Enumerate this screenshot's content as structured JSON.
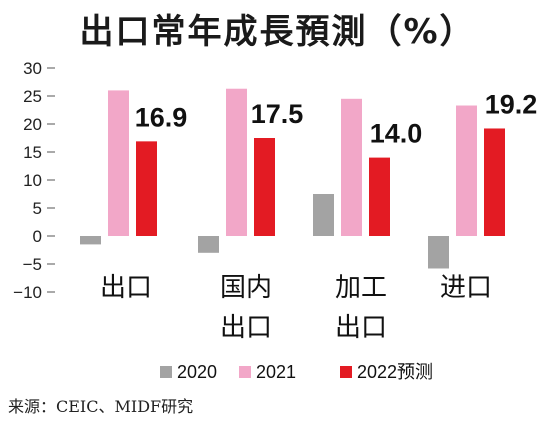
{
  "title": "出口常年成長預測（%）",
  "source": "来源：CEIC、MIDF研究",
  "chart_data": {
    "type": "bar",
    "categories": [
      [
        "出口"
      ],
      [
        "国内",
        "出口"
      ],
      [
        "加工",
        "出口"
      ],
      [
        "进口"
      ]
    ],
    "series": [
      {
        "name": "2020",
        "color": "#a3a3a3",
        "values": [
          -1.5,
          -3.0,
          7.5,
          -5.8
        ]
      },
      {
        "name": "2021",
        "color": "#f2a7c8",
        "values": [
          26.0,
          26.3,
          24.5,
          23.3
        ]
      },
      {
        "name": "2022预测",
        "color": "#e31b23",
        "values": [
          16.9,
          17.5,
          14.0,
          19.2
        ]
      }
    ],
    "data_labels": {
      "series": "2022预测",
      "labels": [
        "16.9",
        "17.5",
        "14.0",
        "19.2"
      ]
    },
    "yticks": [
      30,
      25,
      20,
      15,
      10,
      5,
      0,
      -5,
      -10
    ],
    "ytick_labels": [
      "30",
      "25",
      "20",
      "15",
      "10",
      "5",
      "0",
      "−5",
      "−10"
    ],
    "ylim": [
      -10,
      30
    ],
    "legend": "bottom",
    "grid": false
  }
}
